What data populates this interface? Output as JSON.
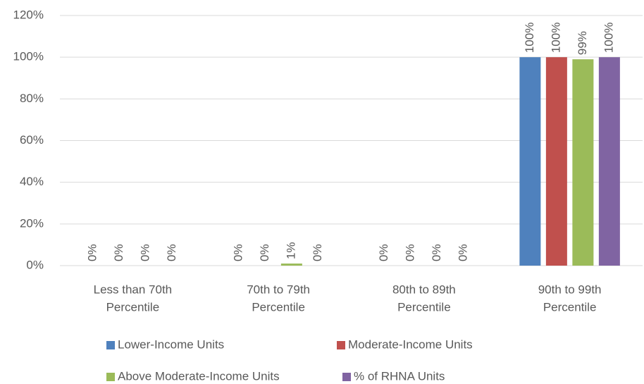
{
  "chart_data": {
    "type": "bar",
    "categories": [
      [
        "Less than 70th",
        "Percentile"
      ],
      [
        "70th to 79th",
        "Percentile"
      ],
      [
        "80th to 89th",
        "Percentile"
      ],
      [
        "90th to 99th",
        "Percentile"
      ]
    ],
    "series": [
      {
        "name": "Lower-Income Units",
        "color": "#4f81bd",
        "values": [
          0,
          0,
          0,
          100
        ],
        "value_labels": [
          "0%",
          "0%",
          "0%",
          "100%"
        ]
      },
      {
        "name": "Moderate-Income Units",
        "color": "#c0504d",
        "values": [
          0,
          0,
          0,
          100
        ],
        "value_labels": [
          "0%",
          "0%",
          "0%",
          "100%"
        ]
      },
      {
        "name": "Above Moderate-Income Units",
        "color": "#9bbb59",
        "values": [
          0,
          1,
          0,
          99
        ],
        "value_labels": [
          "0%",
          "1%",
          "0%",
          "99%"
        ]
      },
      {
        "name": "% of RHNA Units",
        "color": "#8064a2",
        "values": [
          0,
          0,
          0,
          100
        ],
        "value_labels": [
          "0%",
          "0%",
          "0%",
          "100%"
        ]
      }
    ],
    "ylim": [
      0,
      120
    ],
    "yticks": [
      {
        "value": 0,
        "label": "0%"
      },
      {
        "value": 20,
        "label": "20%"
      },
      {
        "value": 40,
        "label": "40%"
      },
      {
        "value": 60,
        "label": "60%"
      },
      {
        "value": 80,
        "label": "80%"
      },
      {
        "value": 100,
        "label": "100%"
      },
      {
        "value": 120,
        "label": "120%"
      }
    ],
    "grid": true
  }
}
